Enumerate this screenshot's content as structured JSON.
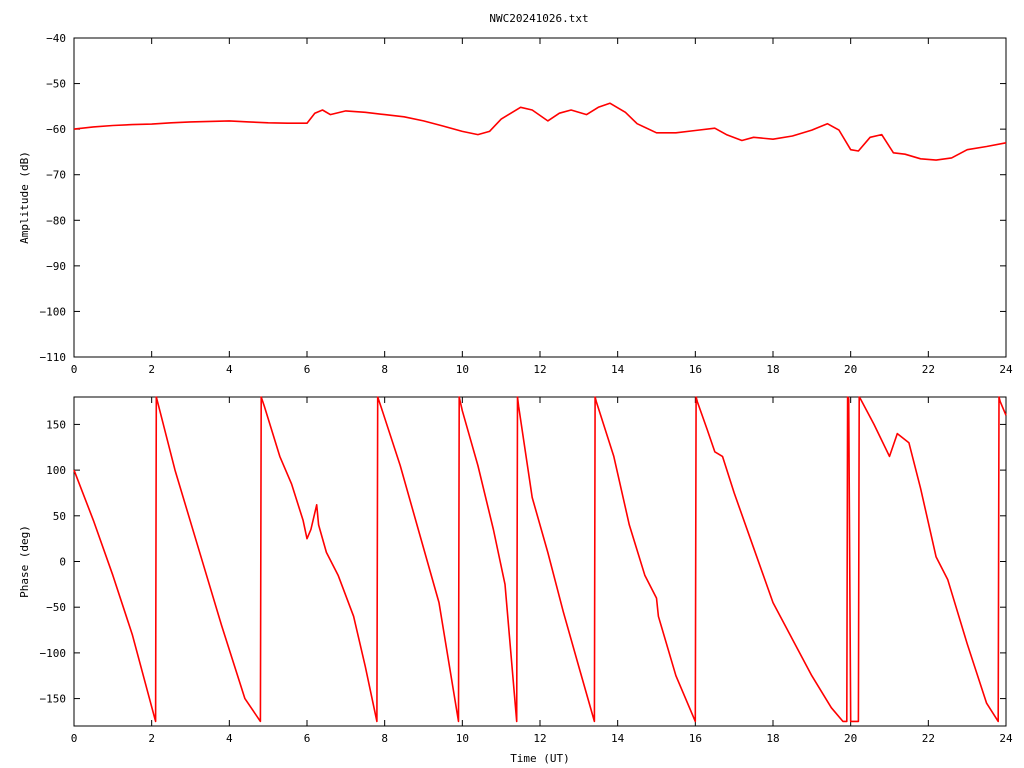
{
  "title": "NWC20241026.txt",
  "chart_data": [
    {
      "type": "line",
      "title": "NWC20241026.txt",
      "xlabel": "",
      "ylabel": "Amplitude (dB)",
      "xlim": [
        0,
        24
      ],
      "ylim": [
        -110,
        -40
      ],
      "xticks": [
        0,
        2,
        4,
        6,
        8,
        10,
        12,
        14,
        16,
        18,
        20,
        22,
        24
      ],
      "yticks": [
        -110,
        -100,
        -90,
        -80,
        -70,
        -60,
        -50,
        -40
      ],
      "grid": false,
      "color": "#ff0000",
      "series": [
        {
          "x": [
            0,
            0.5,
            1,
            1.5,
            2,
            2.5,
            3,
            3.5,
            4,
            4.5,
            5,
            5.5,
            6,
            6.2,
            6.4,
            6.6,
            7,
            7.5,
            8,
            8.5,
            9,
            9.5,
            10,
            10.4,
            10.7,
            11,
            11.5,
            11.8,
            12.2,
            12.5,
            12.8,
            13.2,
            13.5,
            13.8,
            14.2,
            14.5,
            15,
            15.5,
            16,
            16.5,
            16.8,
            17.2,
            17.5,
            18,
            18.5,
            19,
            19.4,
            19.7,
            20,
            20.2,
            20.5,
            20.8,
            21.1,
            21.4,
            21.8,
            22.2,
            22.6,
            23,
            23.5,
            24
          ],
          "y": [
            -60,
            -59.5,
            -59.2,
            -59,
            -58.9,
            -58.6,
            -58.4,
            -58.3,
            -58.2,
            -58.4,
            -58.6,
            -58.7,
            -58.7,
            -56.5,
            -55.8,
            -56.8,
            -56,
            -56.3,
            -56.8,
            -57.3,
            -58.2,
            -59.3,
            -60.5,
            -61.2,
            -60.5,
            -57.8,
            -55.2,
            -55.8,
            -58.2,
            -56.5,
            -55.8,
            -56.8,
            -55.2,
            -54.3,
            -56.3,
            -58.8,
            -60.8,
            -60.8,
            -60.3,
            -59.8,
            -61.2,
            -62.5,
            -61.8,
            -62.2,
            -61.5,
            -60.2,
            -58.8,
            -60.2,
            -64.5,
            -64.8,
            -61.8,
            -61.2,
            -65.2,
            -65.5,
            -66.5,
            -66.8,
            -66.3,
            -64.5,
            -63.8,
            -63
          ]
        }
      ]
    },
    {
      "type": "line",
      "title": "",
      "xlabel": "Time (UT)",
      "ylabel": "Phase (deg)",
      "xlim": [
        0,
        24
      ],
      "ylim": [
        -180,
        180
      ],
      "xticks": [
        0,
        2,
        4,
        6,
        8,
        10,
        12,
        14,
        16,
        18,
        20,
        22,
        24
      ],
      "yticks": [
        -150,
        -100,
        -50,
        0,
        50,
        100,
        150
      ],
      "grid": false,
      "color": "#ff0000",
      "series": [
        {
          "x": [
            0,
            0.5,
            1,
            1.5,
            2.1,
            2.12,
            2.15,
            2.6,
            3.2,
            3.8,
            4.4,
            4.8,
            4.82,
            4.9,
            5.3,
            5.6,
            5.9,
            6.0,
            6.1,
            6.25,
            6.3,
            6.5,
            6.8,
            7.2,
            7.5,
            7.8,
            7.82,
            7.9,
            8.4,
            8.9,
            9.4,
            9.9,
            9.92,
            10.0,
            10.4,
            10.8,
            11.1,
            11.4,
            11.42,
            11.45,
            11.8,
            12.2,
            12.6,
            13.0,
            13.4,
            13.42,
            13.45,
            13.9,
            14.3,
            14.7,
            15.0,
            15.05,
            15.5,
            16.0,
            16.02,
            16.05,
            16.3,
            16.5,
            16.7,
            17.0,
            17.5,
            18.0,
            18.5,
            19.0,
            19.5,
            19.8,
            19.9,
            19.92,
            19.95,
            20.0,
            20.2,
            20.22,
            20.25,
            20.6,
            21.0,
            21.2,
            21.5,
            21.8,
            22.2,
            22.5,
            23.0,
            23.5,
            23.8,
            23.82,
            23.85,
            24.0
          ],
          "y": [
            100,
            45,
            -15,
            -80,
            -175,
            180,
            175,
            100,
            15,
            -70,
            -150,
            -175,
            180,
            170,
            115,
            85,
            45,
            25,
            35,
            62,
            40,
            10,
            -15,
            -60,
            -115,
            -175,
            180,
            170,
            105,
            30,
            -45,
            -175,
            180,
            165,
            105,
            35,
            -25,
            -175,
            180,
            170,
            70,
            10,
            -55,
            -115,
            -175,
            180,
            175,
            115,
            40,
            -15,
            -40,
            -60,
            -125,
            -175,
            180,
            175,
            145,
            120,
            115,
            75,
            15,
            -45,
            -85,
            -125,
            -160,
            -175,
            -175,
            180,
            178,
            -175,
            -175,
            180,
            178,
            150,
            115,
            140,
            130,
            80,
            5,
            -20,
            -90,
            -155,
            -175,
            180,
            175,
            160
          ]
        }
      ]
    }
  ]
}
